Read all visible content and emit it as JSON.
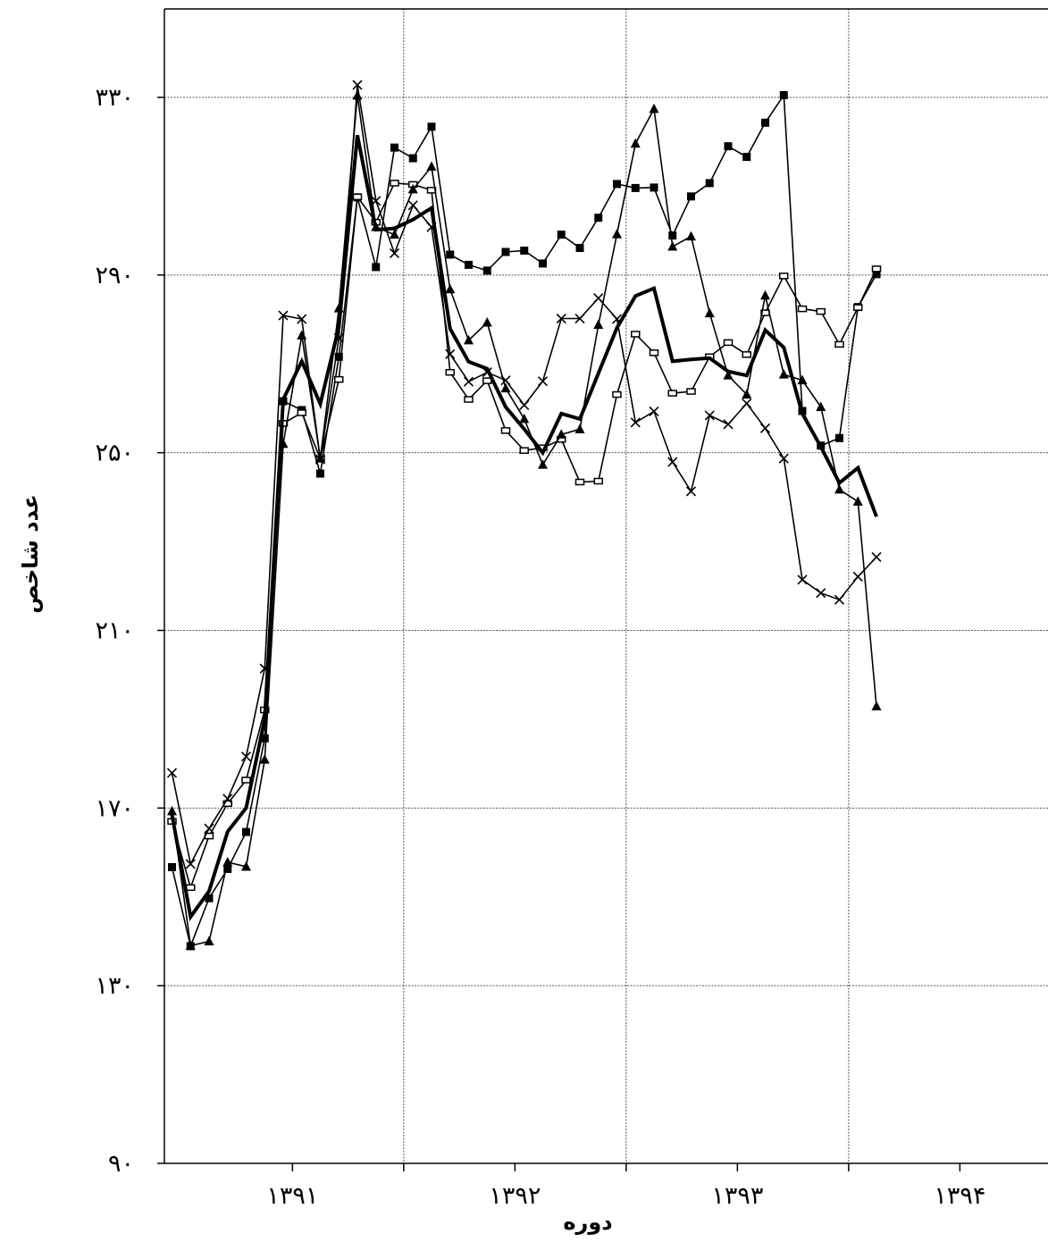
{
  "chart_data": {
    "type": "line",
    "title": "",
    "xlabel": "دوره",
    "ylabel": "عدد شاخص",
    "ylim": [
      90,
      350
    ],
    "y_ticks": [
      90,
      130,
      170,
      210,
      250,
      290,
      330
    ],
    "y_tick_labels": [
      "۹۰",
      "۱۳۰",
      "۱۷۰",
      "۲۱۰",
      "۲۵۰",
      "۲۹۰",
      "۳۳۰"
    ],
    "x_labels": [
      "۱۳۹۱",
      "۱۳۹۲",
      "۱۳۹۳",
      "۱۳۹۴"
    ],
    "x_label_index": [
      6,
      18,
      30,
      42
    ],
    "x_gridline_index": [
      12,
      24,
      36
    ],
    "grid": true,
    "legend": "none",
    "series": [
      {
        "marker": "square-filled",
        "line_width": 1.6,
        "values": [
          156.7,
          138.9,
          149.7,
          156.3,
          164.6,
          185.7,
          261.6,
          259.6,
          245.3,
          271.6,
          307.5,
          291.8,
          318.7,
          316.3,
          323.4,
          294.6,
          292.3,
          291.0,
          295.2,
          295.5,
          292.6,
          299.1,
          296.1,
          302.9,
          310.5,
          309.6,
          309.7,
          298.9,
          307.7,
          310.7,
          319.0,
          316.6,
          324.3,
          330.5,
          259.4,
          251.6,
          253.3,
          282.8,
          290.2
        ]
      },
      {
        "marker": "square-open",
        "line_width": 1.6,
        "values": [
          167.0,
          152.1,
          163.7,
          171.0,
          176.3,
          192.1,
          256.6,
          259.0,
          248.6,
          266.5,
          307.6,
          301.9,
          310.7,
          310.4,
          309.1,
          268.1,
          262.0,
          266.2,
          255.0,
          250.5,
          251.1,
          253.0,
          243.4,
          243.6,
          263.1,
          276.7,
          272.5,
          263.4,
          263.8,
          271.6,
          274.8,
          272.1,
          281.5,
          289.8,
          282.4,
          281.8,
          274.4,
          282.7,
          291.4
        ]
      },
      {
        "marker": "triangle",
        "line_width": 1.6,
        "values": [
          169.3,
          139.0,
          140.0,
          157.8,
          156.8,
          180.9,
          252.0,
          276.4,
          248.7,
          282.5,
          330.4,
          300.8,
          299.1,
          309.3,
          314.4,
          286.8,
          275.3,
          279.3,
          264.5,
          257.6,
          247.3,
          254.1,
          255.3,
          278.8,
          299.2,
          319.6,
          327.4,
          296.4,
          298.7,
          281.4,
          267.4,
          263.1,
          285.4,
          267.6,
          266.3,
          260.3,
          241.7,
          239.0,
          192.9
        ]
      },
      {
        "marker": "x",
        "line_width": 1.6,
        "values": [
          177.9,
          157.4,
          165.4,
          172.1,
          181.6,
          201.4,
          280.9,
          280.1,
          248.5,
          275.8,
          332.8,
          306.7,
          294.9,
          305.7,
          300.8,
          272.2,
          266.0,
          268.1,
          266.3,
          260.7,
          266.1,
          280.2,
          280.2,
          284.8,
          280.1,
          256.8,
          259.3,
          247.9,
          241.3,
          258.4,
          256.4,
          261.1,
          255.5,
          248.7,
          221.4,
          218.4,
          216.9,
          222.1,
          226.5
        ]
      },
      {
        "marker": "none",
        "line_width": 4,
        "values": [
          168.5,
          145.5,
          151.3,
          164.7,
          170.0,
          190.0,
          262.0,
          270.6,
          261.0,
          278.3,
          321.5,
          300.2,
          300.5,
          302.5,
          305.1,
          277.9,
          270.5,
          268.9,
          260.3,
          255.3,
          250.0,
          258.8,
          257.6,
          267.9,
          278.1,
          285.3,
          287.0,
          270.6,
          271.0,
          271.3,
          268.3,
          267.4,
          277.6,
          273.7,
          258.8,
          251.3,
          243.2,
          246.6,
          235.6
        ]
      }
    ]
  }
}
